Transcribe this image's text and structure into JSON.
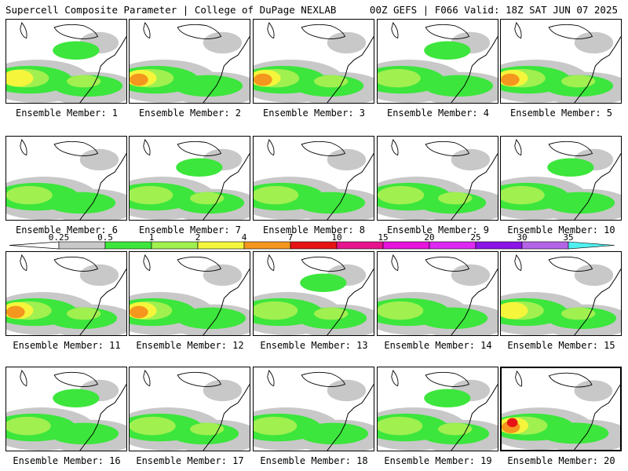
{
  "header": {
    "left": "Supercell Composite Parameter | College of DuPage NEXLAB",
    "right": "00Z GEFS | F066 Valid: 18Z SAT JUN 07 2025"
  },
  "colorbar": {
    "levels": [
      "0.25",
      "0.5",
      "1",
      "2",
      "4",
      "7",
      "10",
      "15",
      "20",
      "25",
      "30",
      "35"
    ],
    "colors": [
      "#c8c8c8",
      "#3ce63c",
      "#a0f050",
      "#f5f53c",
      "#f5961e",
      "#e61414",
      "#e6148c",
      "#e614dc",
      "#dc28f0",
      "#8c14e6",
      "#b464e6",
      "#50f0f0"
    ]
  },
  "members": [
    {
      "label": "Ensemble Member: 1"
    },
    {
      "label": "Ensemble Member: 2"
    },
    {
      "label": "Ensemble Member: 3"
    },
    {
      "label": "Ensemble Member: 4"
    },
    {
      "label": "Ensemble Member: 5"
    },
    {
      "label": "Ensemble Member: 6"
    },
    {
      "label": "Ensemble Member: 7"
    },
    {
      "label": "Ensemble Member: 8"
    },
    {
      "label": "Ensemble Member: 9"
    },
    {
      "label": "Ensemble Member: 10"
    },
    {
      "label": "Ensemble Member: 11"
    },
    {
      "label": "Ensemble Member: 12"
    },
    {
      "label": "Ensemble Member: 13"
    },
    {
      "label": "Ensemble Member: 14"
    },
    {
      "label": "Ensemble Member: 15"
    },
    {
      "label": "Ensemble Member: 16"
    },
    {
      "label": "Ensemble Member: 17"
    },
    {
      "label": "Ensemble Member: 18"
    },
    {
      "label": "Ensemble Member: 19"
    },
    {
      "label": "Ensemble Member: 20",
      "highlighted": true
    }
  ]
}
